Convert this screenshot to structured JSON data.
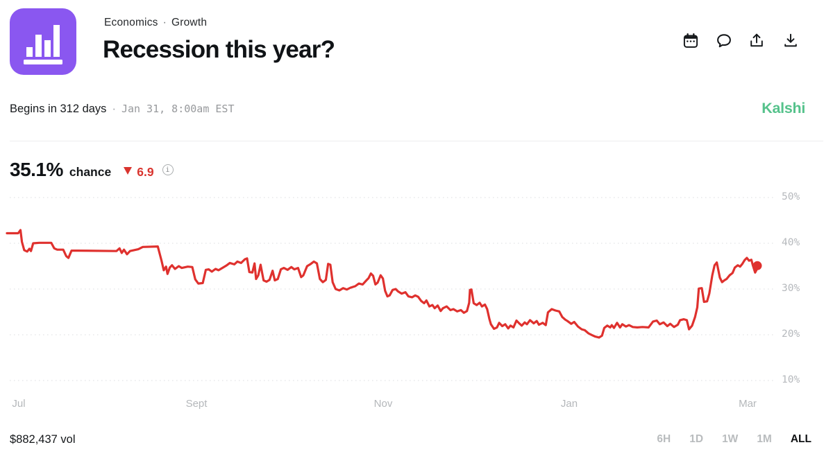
{
  "header": {
    "category": "Economics",
    "crumb_separator": "·",
    "subcategory": "Growth",
    "title": "Recession this year?",
    "icons": [
      "calendar-icon",
      "comment-icon",
      "share-icon",
      "download-icon"
    ]
  },
  "meta": {
    "begins": "Begins in 312 days",
    "separator": "·",
    "datetime": "Jan 31, 8:00am EST",
    "brand": "Kalshi",
    "brand_color": "#55c28b"
  },
  "stats": {
    "chance_value": "35.1%",
    "chance_label": "chance",
    "change_direction": "down",
    "change_value": "6.9",
    "change_color": "#d9342e",
    "info_glyph": "i"
  },
  "footer": {
    "volume": "$882,437 vol",
    "ranges": [
      {
        "label": "6H",
        "active": false
      },
      {
        "label": "1D",
        "active": false
      },
      {
        "label": "1W",
        "active": false
      },
      {
        "label": "1M",
        "active": false
      },
      {
        "label": "ALL",
        "active": true
      }
    ]
  },
  "chart_data": {
    "type": "line",
    "xlabel": "",
    "ylabel": "",
    "ylim": [
      10,
      50
    ],
    "grid": "dotted-horizontal",
    "legend": "none",
    "end_marker": true,
    "last_value": 35.1,
    "yticks": [
      {
        "value": 50,
        "label": "50%"
      },
      {
        "value": 40,
        "label": "40%"
      },
      {
        "value": 30,
        "label": "30%"
      },
      {
        "value": 20,
        "label": "20%"
      },
      {
        "value": 10,
        "label": "10%"
      }
    ],
    "xticks": [
      {
        "t": 0.012,
        "label": "Jul"
      },
      {
        "t": 0.253,
        "label": "Sept"
      },
      {
        "t": 0.501,
        "label": "Nov"
      },
      {
        "t": 0.749,
        "label": "Jan"
      },
      {
        "t": 0.987,
        "label": "Mar"
      }
    ],
    "series": [
      {
        "name": "Yes chance (%)",
        "color": "#df312e",
        "points": [
          [
            0.0,
            42.2
          ],
          [
            0.015,
            42.2
          ],
          [
            0.018,
            42.9
          ],
          [
            0.02,
            40.3
          ],
          [
            0.023,
            38.5
          ],
          [
            0.027,
            38.2
          ],
          [
            0.03,
            38.8
          ],
          [
            0.032,
            38.3
          ],
          [
            0.035,
            40.0
          ],
          [
            0.043,
            40.1
          ],
          [
            0.059,
            40.1
          ],
          [
            0.063,
            38.9
          ],
          [
            0.067,
            38.6
          ],
          [
            0.075,
            38.6
          ],
          [
            0.079,
            37.2
          ],
          [
            0.082,
            36.8
          ],
          [
            0.086,
            38.4
          ],
          [
            0.094,
            38.4
          ],
          [
            0.146,
            38.3
          ],
          [
            0.15,
            38.9
          ],
          [
            0.153,
            37.9
          ],
          [
            0.156,
            38.6
          ],
          [
            0.16,
            37.6
          ],
          [
            0.164,
            38.3
          ],
          [
            0.175,
            38.7
          ],
          [
            0.181,
            39.2
          ],
          [
            0.201,
            39.3
          ],
          [
            0.206,
            36.2
          ],
          [
            0.209,
            34.1
          ],
          [
            0.212,
            34.9
          ],
          [
            0.214,
            33.3
          ],
          [
            0.217,
            34.7
          ],
          [
            0.22,
            35.2
          ],
          [
            0.224,
            34.4
          ],
          [
            0.229,
            35.0
          ],
          [
            0.233,
            34.6
          ],
          [
            0.241,
            34.9
          ],
          [
            0.247,
            34.8
          ],
          [
            0.251,
            32.1
          ],
          [
            0.255,
            31.2
          ],
          [
            0.261,
            31.3
          ],
          [
            0.265,
            34.2
          ],
          [
            0.269,
            34.3
          ],
          [
            0.273,
            33.8
          ],
          [
            0.278,
            34.4
          ],
          [
            0.282,
            34.1
          ],
          [
            0.288,
            34.7
          ],
          [
            0.293,
            35.2
          ],
          [
            0.297,
            35.7
          ],
          [
            0.303,
            35.4
          ],
          [
            0.307,
            36.0
          ],
          [
            0.312,
            35.7
          ],
          [
            0.317,
            36.5
          ],
          [
            0.32,
            36.7
          ],
          [
            0.323,
            33.7
          ],
          [
            0.327,
            33.6
          ],
          [
            0.33,
            35.6
          ],
          [
            0.332,
            32.2
          ],
          [
            0.335,
            33.0
          ],
          [
            0.338,
            35.3
          ],
          [
            0.342,
            31.9
          ],
          [
            0.346,
            31.6
          ],
          [
            0.35,
            32.0
          ],
          [
            0.354,
            34.0
          ],
          [
            0.357,
            31.9
          ],
          [
            0.361,
            32.2
          ],
          [
            0.365,
            34.3
          ],
          [
            0.369,
            34.6
          ],
          [
            0.374,
            34.2
          ],
          [
            0.379,
            34.8
          ],
          [
            0.383,
            34.3
          ],
          [
            0.388,
            34.6
          ],
          [
            0.392,
            32.6
          ],
          [
            0.395,
            33.0
          ],
          [
            0.4,
            35.0
          ],
          [
            0.405,
            35.5
          ],
          [
            0.409,
            36.0
          ],
          [
            0.413,
            35.6
          ],
          [
            0.417,
            32.2
          ],
          [
            0.421,
            31.5
          ],
          [
            0.425,
            32.0
          ],
          [
            0.428,
            35.5
          ],
          [
            0.431,
            35.3
          ],
          [
            0.434,
            31.5
          ],
          [
            0.438,
            30.0
          ],
          [
            0.443,
            29.7
          ],
          [
            0.448,
            30.2
          ],
          [
            0.453,
            29.9
          ],
          [
            0.458,
            30.3
          ],
          [
            0.464,
            30.6
          ],
          [
            0.469,
            31.2
          ],
          [
            0.474,
            31.0
          ],
          [
            0.479,
            31.9
          ],
          [
            0.482,
            32.4
          ],
          [
            0.485,
            33.4
          ],
          [
            0.488,
            32.9
          ],
          [
            0.491,
            31.0
          ],
          [
            0.494,
            31.4
          ],
          [
            0.498,
            33.0
          ],
          [
            0.501,
            32.3
          ],
          [
            0.504,
            29.6
          ],
          [
            0.507,
            28.4
          ],
          [
            0.51,
            28.6
          ],
          [
            0.514,
            29.8
          ],
          [
            0.518,
            30.0
          ],
          [
            0.521,
            29.5
          ],
          [
            0.526,
            29.0
          ],
          [
            0.531,
            29.3
          ],
          [
            0.535,
            28.4
          ],
          [
            0.54,
            28.2
          ],
          [
            0.544,
            28.6
          ],
          [
            0.548,
            28.3
          ],
          [
            0.552,
            27.4
          ],
          [
            0.556,
            26.9
          ],
          [
            0.559,
            27.5
          ],
          [
            0.563,
            26.2
          ],
          [
            0.567,
            26.5
          ],
          [
            0.57,
            25.8
          ],
          [
            0.574,
            26.4
          ],
          [
            0.578,
            25.2
          ],
          [
            0.581,
            25.8
          ],
          [
            0.586,
            26.2
          ],
          [
            0.591,
            25.4
          ],
          [
            0.595,
            25.6
          ],
          [
            0.6,
            25.1
          ],
          [
            0.605,
            25.4
          ],
          [
            0.609,
            24.8
          ],
          [
            0.613,
            25.2
          ],
          [
            0.616,
            27.0
          ],
          [
            0.617,
            29.8
          ],
          [
            0.619,
            29.9
          ],
          [
            0.622,
            26.9
          ],
          [
            0.626,
            26.5
          ],
          [
            0.63,
            27.0
          ],
          [
            0.633,
            26.2
          ],
          [
            0.637,
            26.6
          ],
          [
            0.64,
            25.6
          ],
          [
            0.643,
            23.4
          ],
          [
            0.645,
            22.3
          ],
          [
            0.649,
            21.3
          ],
          [
            0.653,
            21.6
          ],
          [
            0.656,
            22.6
          ],
          [
            0.66,
            21.9
          ],
          [
            0.664,
            22.3
          ],
          [
            0.668,
            21.4
          ],
          [
            0.671,
            22.0
          ],
          [
            0.675,
            21.6
          ],
          [
            0.679,
            23.1
          ],
          [
            0.682,
            22.6
          ],
          [
            0.686,
            22.0
          ],
          [
            0.69,
            22.7
          ],
          [
            0.693,
            22.3
          ],
          [
            0.697,
            23.2
          ],
          [
            0.702,
            22.5
          ],
          [
            0.706,
            23.0
          ],
          [
            0.709,
            22.2
          ],
          [
            0.714,
            22.6
          ],
          [
            0.718,
            22.1
          ],
          [
            0.721,
            24.9
          ],
          [
            0.726,
            25.6
          ],
          [
            0.731,
            25.3
          ],
          [
            0.736,
            25.1
          ],
          [
            0.74,
            23.9
          ],
          [
            0.744,
            23.3
          ],
          [
            0.747,
            23.0
          ],
          [
            0.752,
            22.4
          ],
          [
            0.756,
            22.8
          ],
          [
            0.761,
            21.8
          ],
          [
            0.766,
            21.2
          ],
          [
            0.77,
            21.0
          ],
          [
            0.775,
            20.3
          ],
          [
            0.78,
            19.9
          ],
          [
            0.784,
            19.6
          ],
          [
            0.789,
            19.4
          ],
          [
            0.793,
            19.8
          ],
          [
            0.796,
            21.5
          ],
          [
            0.8,
            22.0
          ],
          [
            0.804,
            21.6
          ],
          [
            0.806,
            22.1
          ],
          [
            0.809,
            21.5
          ],
          [
            0.813,
            22.6
          ],
          [
            0.817,
            21.6
          ],
          [
            0.82,
            22.3
          ],
          [
            0.825,
            21.8
          ],
          [
            0.829,
            22.1
          ],
          [
            0.834,
            21.7
          ],
          [
            0.84,
            21.6
          ],
          [
            0.847,
            21.7
          ],
          [
            0.855,
            21.6
          ],
          [
            0.861,
            22.9
          ],
          [
            0.866,
            23.1
          ],
          [
            0.87,
            22.3
          ],
          [
            0.875,
            22.7
          ],
          [
            0.88,
            21.9
          ],
          [
            0.884,
            22.4
          ],
          [
            0.889,
            21.7
          ],
          [
            0.894,
            22.2
          ],
          [
            0.897,
            23.2
          ],
          [
            0.902,
            23.4
          ],
          [
            0.906,
            23.2
          ],
          [
            0.909,
            21.2
          ],
          [
            0.913,
            22.0
          ],
          [
            0.917,
            23.9
          ],
          [
            0.92,
            26.0
          ],
          [
            0.922,
            30.1
          ],
          [
            0.926,
            30.2
          ],
          [
            0.929,
            27.2
          ],
          [
            0.933,
            27.3
          ],
          [
            0.936,
            29.0
          ],
          [
            0.94,
            33.0
          ],
          [
            0.943,
            35.2
          ],
          [
            0.946,
            35.8
          ],
          [
            0.95,
            32.5
          ],
          [
            0.953,
            31.5
          ],
          [
            0.956,
            31.9
          ],
          [
            0.959,
            32.2
          ],
          [
            0.963,
            33.0
          ],
          [
            0.967,
            33.5
          ],
          [
            0.97,
            34.7
          ],
          [
            0.974,
            35.2
          ],
          [
            0.977,
            34.9
          ],
          [
            0.98,
            35.5
          ],
          [
            0.983,
            36.3
          ],
          [
            0.986,
            36.8
          ],
          [
            0.989,
            36.2
          ],
          [
            0.992,
            36.4
          ],
          [
            0.994,
            35.2
          ],
          [
            0.997,
            33.6
          ],
          [
            0.999,
            34.2
          ],
          [
            1.0,
            35.1
          ]
        ]
      }
    ]
  },
  "colors": {
    "line_red": "#df312e",
    "logo_purple": "#8a57f0",
    "brand_green": "#55c28b",
    "axis_gray": "#b6b9bd"
  }
}
